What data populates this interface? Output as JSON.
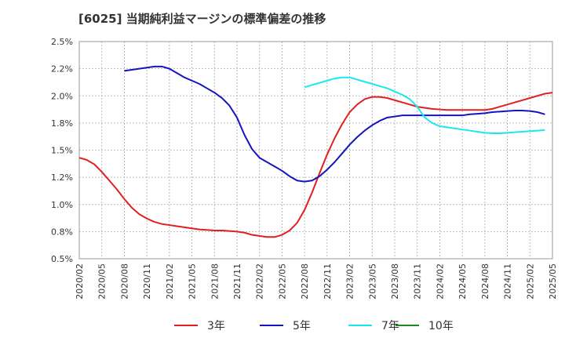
{
  "chart_data": {
    "type": "line",
    "title": "[6025]  当期純利益マージンの標準偏差の推移",
    "ylim": [
      0.5,
      2.5
    ],
    "y_ticks": [
      "0.5%",
      "0.8%",
      "1.0%",
      "1.2%",
      "1.5%",
      "1.8%",
      "2.0%",
      "2.2%",
      "2.5%"
    ],
    "y_tick_values": [
      0.5,
      0.75,
      1.0,
      1.25,
      1.5,
      1.75,
      2.0,
      2.25,
      2.5
    ],
    "x_ticks": [
      "2020/02",
      "2020/05",
      "2020/08",
      "2020/11",
      "2021/02",
      "2021/05",
      "2021/08",
      "2021/11",
      "2022/02",
      "2022/05",
      "2022/08",
      "2022/11",
      "2023/02",
      "2023/05",
      "2023/08",
      "2023/11",
      "2024/02",
      "2024/05",
      "2024/08",
      "2024/11",
      "2025/02",
      "2025/05"
    ],
    "x_start": "2020/02",
    "grid": true,
    "legend_position": "bottom",
    "series": [
      {
        "name": "3年",
        "color": "#e02020",
        "start": "2020/02",
        "values": [
          1.43,
          1.41,
          1.37,
          1.3,
          1.22,
          1.14,
          1.05,
          0.97,
          0.91,
          0.87,
          0.84,
          0.82,
          0.81,
          0.8,
          0.79,
          0.78,
          0.77,
          0.765,
          0.76,
          0.76,
          0.755,
          0.75,
          0.74,
          0.72,
          0.71,
          0.7,
          0.7,
          0.72,
          0.76,
          0.83,
          0.95,
          1.11,
          1.29,
          1.46,
          1.61,
          1.74,
          1.85,
          1.92,
          1.97,
          1.99,
          1.99,
          1.98,
          1.96,
          1.94,
          1.92,
          1.9,
          1.89,
          1.88,
          1.875,
          1.87,
          1.87,
          1.87,
          1.87,
          1.87,
          1.87,
          1.88,
          1.9,
          1.92,
          1.94,
          1.96,
          1.98,
          2.0,
          2.02,
          2.03
        ]
      },
      {
        "name": "5年",
        "color": "#1515c0",
        "start": "2020/08",
        "values": [
          2.23,
          2.24,
          2.25,
          2.26,
          2.27,
          2.27,
          2.25,
          2.21,
          2.17,
          2.14,
          2.11,
          2.07,
          2.03,
          1.98,
          1.91,
          1.8,
          1.64,
          1.51,
          1.43,
          1.39,
          1.35,
          1.31,
          1.26,
          1.22,
          1.21,
          1.22,
          1.26,
          1.32,
          1.39,
          1.47,
          1.55,
          1.62,
          1.68,
          1.73,
          1.77,
          1.8,
          1.81,
          1.82,
          1.82,
          1.82,
          1.82,
          1.82,
          1.82,
          1.82,
          1.82,
          1.82,
          1.83,
          1.835,
          1.84,
          1.85,
          1.855,
          1.86,
          1.865,
          1.865,
          1.86,
          1.85,
          1.83
        ]
      },
      {
        "name": "7年",
        "color": "#1ae8f0",
        "start": "2022/08",
        "values": [
          2.08,
          2.1,
          2.12,
          2.14,
          2.16,
          2.17,
          2.17,
          2.15,
          2.13,
          2.11,
          2.09,
          2.07,
          2.04,
          2.01,
          1.97,
          1.9,
          1.8,
          1.75,
          1.72,
          1.71,
          1.7,
          1.69,
          1.68,
          1.67,
          1.66,
          1.655,
          1.655,
          1.66,
          1.665,
          1.67,
          1.675,
          1.68,
          1.685
        ]
      },
      {
        "name": "10年",
        "color": "#1a8a1a",
        "start": "2025/02",
        "values": []
      }
    ]
  }
}
